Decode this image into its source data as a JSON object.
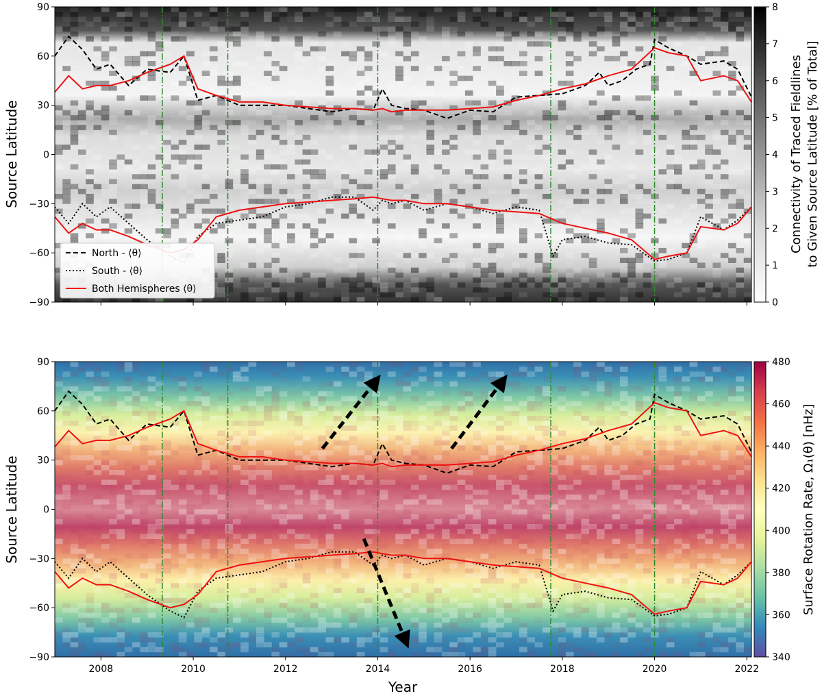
{
  "figure": {
    "xlabel": "Year",
    "x_ticks": [
      2008,
      2010,
      2012,
      2014,
      2016,
      2018,
      2020,
      2022
    ],
    "xlim": [
      2007.0,
      2022.1
    ],
    "vlines": [
      2009.33,
      2010.75,
      2014.0,
      2017.75,
      2020.0
    ],
    "colors": {
      "north": "#000000",
      "south": "#000000",
      "both": "#ee1111",
      "vline": "#2e8b2e"
    }
  },
  "chart_data": [
    {
      "type": "heatmap",
      "panel": "top",
      "ylabel": "Source Latitude",
      "ylim": [
        -90,
        90
      ],
      "y_ticks": [
        "90",
        "60",
        "30",
        "0",
        "−30",
        "−60",
        "−90"
      ],
      "y_tick_values": [
        90,
        60,
        30,
        0,
        -30,
        -60,
        -90
      ],
      "colorbar": {
        "label_lines": [
          "Connectivity of Traced Fieldlines",
          "to Given Source Latitude [% of Total]"
        ],
        "range": [
          0,
          8
        ],
        "ticks": [
          "0",
          "1",
          "2",
          "3",
          "4",
          "5",
          "6",
          "7",
          "8"
        ],
        "colormap": "Greys"
      },
      "legend": {
        "placement": "lower-left",
        "entries": [
          "North - ⟨θ⟩",
          "South - ⟨θ⟩",
          "Both Hemispheres ⟨θ⟩"
        ]
      },
      "series": [
        {
          "name": "North - ⟨θ⟩",
          "style": "dashed",
          "x": [
            2007.0,
            2007.3,
            2007.6,
            2007.9,
            2008.2,
            2008.6,
            2009.0,
            2009.5,
            2009.8,
            2010.1,
            2010.5,
            2011.0,
            2011.5,
            2012.0,
            2012.5,
            2013.0,
            2013.5,
            2013.9,
            2014.1,
            2014.3,
            2014.6,
            2015.0,
            2015.5,
            2016.0,
            2016.5,
            2017.0,
            2017.5,
            2018.0,
            2018.5,
            2018.8,
            2019.0,
            2019.3,
            2019.6,
            2019.9,
            2020.0,
            2020.3,
            2020.7,
            2021.0,
            2021.5,
            2021.8,
            2022.1
          ],
          "y": [
            60,
            72,
            64,
            52,
            55,
            42,
            52,
            50,
            60,
            33,
            36,
            30,
            30,
            30,
            28,
            26,
            28,
            27,
            40,
            30,
            28,
            27,
            22,
            27,
            26,
            35,
            36,
            37,
            42,
            50,
            42,
            45,
            52,
            55,
            70,
            65,
            60,
            55,
            57,
            52,
            35
          ]
        },
        {
          "name": "South - ⟨θ⟩",
          "style": "dotted",
          "x": [
            2007.0,
            2007.3,
            2007.6,
            2007.9,
            2008.2,
            2008.6,
            2009.0,
            2009.5,
            2009.8,
            2010.1,
            2010.5,
            2011.0,
            2011.5,
            2012.0,
            2012.5,
            2013.0,
            2013.5,
            2013.9,
            2014.1,
            2014.3,
            2014.6,
            2015.0,
            2015.5,
            2016.0,
            2016.5,
            2017.0,
            2017.5,
            2017.8,
            2018.0,
            2018.5,
            2019.0,
            2019.5,
            2020.0,
            2020.3,
            2020.7,
            2021.0,
            2021.5,
            2021.8,
            2022.1
          ],
          "y": [
            -32,
            -42,
            -30,
            -38,
            -32,
            -42,
            -52,
            -62,
            -66,
            -50,
            -42,
            -40,
            -38,
            -32,
            -30,
            -26,
            -26,
            -34,
            -28,
            -30,
            -28,
            -34,
            -30,
            -32,
            -36,
            -32,
            -34,
            -62,
            -52,
            -50,
            -54,
            -55,
            -65,
            -64,
            -60,
            -38,
            -46,
            -40,
            -32
          ]
        },
        {
          "name": "Both Hemispheres ⟨θ⟩",
          "style": "solid",
          "x": [
            2007.0,
            2007.3,
            2007.6,
            2007.9,
            2008.2,
            2008.6,
            2009.0,
            2009.5,
            2009.8,
            2010.1,
            2010.5,
            2011.0,
            2011.5,
            2012.0,
            2012.5,
            2013.0,
            2013.5,
            2013.9,
            2014.1,
            2014.3,
            2014.6,
            2015.0,
            2015.5,
            2016.0,
            2016.5,
            2017.0,
            2017.5,
            2018.0,
            2018.5,
            2019.0,
            2019.5,
            2020.0,
            2020.3,
            2020.7,
            2021.0,
            2021.5,
            2021.8,
            2022.1
          ],
          "y": [
            38,
            48,
            40,
            42,
            42,
            45,
            50,
            55,
            60,
            40,
            36,
            32,
            32,
            30,
            29,
            28,
            28,
            27,
            28,
            26,
            27,
            27,
            27,
            28,
            29,
            33,
            36,
            40,
            43,
            48,
            52,
            65,
            62,
            60,
            45,
            48,
            45,
            32
          ]
        },
        {
          "name": "Both Hemispheres ⟨θ⟩ (south)",
          "style": "solid",
          "legend": false,
          "x": [
            2007.0,
            2007.3,
            2007.6,
            2007.9,
            2008.2,
            2008.6,
            2009.0,
            2009.5,
            2009.8,
            2010.1,
            2010.5,
            2011.0,
            2011.5,
            2012.0,
            2012.5,
            2013.0,
            2013.5,
            2013.9,
            2014.1,
            2014.3,
            2014.6,
            2015.0,
            2015.5,
            2016.0,
            2016.5,
            2017.0,
            2017.5,
            2018.0,
            2018.5,
            2019.0,
            2019.5,
            2020.0,
            2020.3,
            2020.7,
            2021.0,
            2021.5,
            2021.8,
            2022.1
          ],
          "y": [
            -38,
            -48,
            -42,
            -46,
            -46,
            -50,
            -55,
            -60,
            -58,
            -52,
            -38,
            -34,
            -32,
            -30,
            -29,
            -28,
            -27,
            -26,
            -27,
            -28,
            -28,
            -30,
            -30,
            -32,
            -34,
            -35,
            -36,
            -42,
            -45,
            -48,
            -52,
            -64,
            -62,
            -60,
            -44,
            -46,
            -42,
            -32
          ]
        }
      ]
    },
    {
      "type": "heatmap",
      "panel": "bottom",
      "ylabel": "Source Latitude",
      "ylim": [
        -90,
        90
      ],
      "y_ticks": [
        "90",
        "60",
        "30",
        "0",
        "−30",
        "−60",
        "−90"
      ],
      "y_tick_values": [
        90,
        60,
        30,
        0,
        -30,
        -60,
        -90
      ],
      "colorbar": {
        "label": "Surface Rotation Rate, Ω₁(θ) [nHz]",
        "range": [
          340,
          480
        ],
        "ticks": [
          "340",
          "360",
          "380",
          "400",
          "420",
          "440",
          "460",
          "480"
        ],
        "colormap": "Spectral_r"
      },
      "arrows": [
        {
          "from": [
            2012.8,
            37
          ],
          "to": [
            2013.95,
            78
          ]
        },
        {
          "from": [
            2015.6,
            37
          ],
          "to": [
            2016.7,
            78
          ]
        },
        {
          "from": [
            2013.7,
            -18
          ],
          "to": [
            2014.6,
            -80
          ]
        }
      ],
      "series": [
        {
          "name": "North - ⟨θ⟩",
          "style": "dashed",
          "x": [
            2007.0,
            2007.3,
            2007.6,
            2007.9,
            2008.2,
            2008.6,
            2009.0,
            2009.5,
            2009.8,
            2010.1,
            2010.5,
            2011.0,
            2011.5,
            2012.0,
            2012.5,
            2013.0,
            2013.5,
            2013.9,
            2014.1,
            2014.3,
            2014.6,
            2015.0,
            2015.5,
            2016.0,
            2016.5,
            2017.0,
            2017.5,
            2018.0,
            2018.5,
            2018.8,
            2019.0,
            2019.3,
            2019.6,
            2019.9,
            2020.0,
            2020.3,
            2020.7,
            2021.0,
            2021.5,
            2021.8,
            2022.1
          ],
          "y": [
            60,
            72,
            64,
            52,
            55,
            42,
            52,
            50,
            60,
            33,
            36,
            30,
            30,
            30,
            28,
            26,
            28,
            27,
            40,
            30,
            28,
            27,
            22,
            27,
            26,
            35,
            36,
            37,
            42,
            50,
            42,
            45,
            52,
            55,
            70,
            65,
            60,
            55,
            57,
            52,
            35
          ]
        },
        {
          "name": "South - ⟨θ⟩",
          "style": "dotted",
          "x": [
            2007.0,
            2007.3,
            2007.6,
            2007.9,
            2008.2,
            2008.6,
            2009.0,
            2009.5,
            2009.8,
            2010.1,
            2010.5,
            2011.0,
            2011.5,
            2012.0,
            2012.5,
            2013.0,
            2013.5,
            2013.9,
            2014.1,
            2014.3,
            2014.6,
            2015.0,
            2015.5,
            2016.0,
            2016.5,
            2017.0,
            2017.5,
            2017.8,
            2018.0,
            2018.5,
            2019.0,
            2019.5,
            2020.0,
            2020.3,
            2020.7,
            2021.0,
            2021.5,
            2021.8,
            2022.1
          ],
          "y": [
            -32,
            -42,
            -30,
            -38,
            -32,
            -42,
            -52,
            -62,
            -66,
            -50,
            -42,
            -40,
            -38,
            -32,
            -30,
            -26,
            -26,
            -34,
            -28,
            -30,
            -28,
            -34,
            -30,
            -32,
            -36,
            -32,
            -34,
            -62,
            -52,
            -50,
            -54,
            -55,
            -65,
            -64,
            -60,
            -38,
            -46,
            -40,
            -32
          ]
        },
        {
          "name": "Both Hemispheres ⟨θ⟩",
          "style": "solid",
          "x": [
            2007.0,
            2007.3,
            2007.6,
            2007.9,
            2008.2,
            2008.6,
            2009.0,
            2009.5,
            2009.8,
            2010.1,
            2010.5,
            2011.0,
            2011.5,
            2012.0,
            2012.5,
            2013.0,
            2013.5,
            2013.9,
            2014.1,
            2014.3,
            2014.6,
            2015.0,
            2015.5,
            2016.0,
            2016.5,
            2017.0,
            2017.5,
            2018.0,
            2018.5,
            2019.0,
            2019.5,
            2020.0,
            2020.3,
            2020.7,
            2021.0,
            2021.5,
            2021.8,
            2022.1
          ],
          "y": [
            38,
            48,
            40,
            42,
            42,
            45,
            50,
            55,
            60,
            40,
            36,
            32,
            32,
            30,
            29,
            28,
            28,
            27,
            28,
            26,
            27,
            27,
            27,
            28,
            29,
            33,
            36,
            40,
            43,
            48,
            52,
            65,
            62,
            60,
            45,
            48,
            45,
            32
          ]
        },
        {
          "name": "Both Hemispheres ⟨θ⟩ (south)",
          "style": "solid",
          "legend": false,
          "x": [
            2007.0,
            2007.3,
            2007.6,
            2007.9,
            2008.2,
            2008.6,
            2009.0,
            2009.5,
            2009.8,
            2010.1,
            2010.5,
            2011.0,
            2011.5,
            2012.0,
            2012.5,
            2013.0,
            2013.5,
            2013.9,
            2014.1,
            2014.3,
            2014.6,
            2015.0,
            2015.5,
            2016.0,
            2016.5,
            2017.0,
            2017.5,
            2018.0,
            2018.5,
            2019.0,
            2019.5,
            2020.0,
            2020.3,
            2020.7,
            2021.0,
            2021.5,
            2021.8,
            2022.1
          ],
          "y": [
            -38,
            -48,
            -42,
            -46,
            -46,
            -50,
            -55,
            -60,
            -58,
            -52,
            -38,
            -34,
            -32,
            -30,
            -29,
            -28,
            -27,
            -26,
            -27,
            -28,
            -28,
            -30,
            -30,
            -32,
            -34,
            -35,
            -36,
            -42,
            -45,
            -48,
            -52,
            -64,
            -62,
            -60,
            -44,
            -46,
            -42,
            -32
          ]
        }
      ]
    }
  ]
}
